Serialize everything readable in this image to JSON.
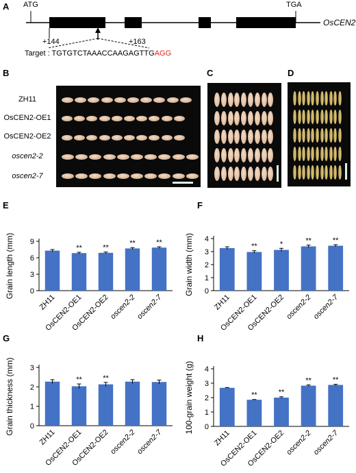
{
  "panels": {
    "A": "A",
    "B": "B",
    "C": "C",
    "D": "D",
    "E": "E",
    "F": "F",
    "G": "G",
    "H": "H"
  },
  "gene": {
    "start_codon": "ATG",
    "stop_codon": "TGA",
    "name": "OsCEN2",
    "pos_start": "+144",
    "pos_end": "+163",
    "target_label": "Target :",
    "target_seq": "TGTGTCTAAACCAAGAGTTG",
    "pam": "AGG",
    "pam_color": "#e8231c"
  },
  "rows": [
    "ZH11",
    "OsCEN2-OE1",
    "OsCEN2-OE2",
    "oscen2-2",
    "oscen2-7"
  ],
  "seed_colors": {
    "B": "#d9b79a",
    "C": "#e2bfa2",
    "D": "#cfb76a"
  },
  "bar_color": "#4472c4",
  "chart_data": [
    {
      "panel": "E",
      "type": "bar",
      "categories": [
        "ZH11",
        "OsCEN2-OE1",
        "OsCEN2-OE2",
        "oscen2-2",
        "oscen2-7"
      ],
      "values": [
        7.3,
        6.85,
        6.9,
        7.7,
        7.85
      ],
      "errors": [
        0.2,
        0.15,
        0.15,
        0.15,
        0.15
      ],
      "significance": [
        "",
        "**",
        "**",
        "**",
        "**"
      ],
      "ylabel": "Grain length (mm)",
      "ylim": [
        0,
        9
      ],
      "yticks": [
        0,
        3,
        6,
        9
      ]
    },
    {
      "panel": "F",
      "type": "bar",
      "categories": [
        "ZH11",
        "OsCEN2-OE1",
        "OsCEN2-OE2",
        "oscen2-2",
        "oscen2-7"
      ],
      "values": [
        3.27,
        2.97,
        3.13,
        3.4,
        3.45
      ],
      "errors": [
        0.1,
        0.1,
        0.12,
        0.1,
        0.08
      ],
      "significance": [
        "",
        "**",
        "*",
        "**",
        "**"
      ],
      "ylabel": "Grain width (mm)",
      "ylim": [
        0,
        4
      ],
      "yticks": [
        0,
        1,
        2,
        3,
        4
      ]
    },
    {
      "panel": "G",
      "type": "bar",
      "categories": [
        "ZH11",
        "OsCEN2-OE1",
        "OsCEN2-OE2",
        "oscen2-2",
        "oscen2-7"
      ],
      "values": [
        2.27,
        2.03,
        2.13,
        2.27,
        2.25
      ],
      "errors": [
        0.1,
        0.12,
        0.1,
        0.1,
        0.1
      ],
      "significance": [
        "",
        "**",
        "**",
        "",
        ""
      ],
      "ylabel": "Grain thickness (mm)",
      "ylim": [
        0,
        3
      ],
      "yticks": [
        0,
        1,
        2,
        3
      ]
    },
    {
      "panel": "H",
      "type": "bar",
      "categories": [
        "ZH11",
        "OsCEN2-OE1",
        "OsCEN2-OE2",
        "oscen2-2",
        "oscen2-7"
      ],
      "values": [
        2.68,
        1.85,
        2.0,
        2.83,
        2.88
      ],
      "errors": [
        0.02,
        0.02,
        0.06,
        0.05,
        0.04
      ],
      "significance": [
        "",
        "**",
        "**",
        "**",
        "**"
      ],
      "ylabel": "100-grain weight (g)",
      "ylim": [
        0,
        4
      ],
      "yticks": [
        0,
        1,
        2,
        3,
        4
      ]
    }
  ]
}
